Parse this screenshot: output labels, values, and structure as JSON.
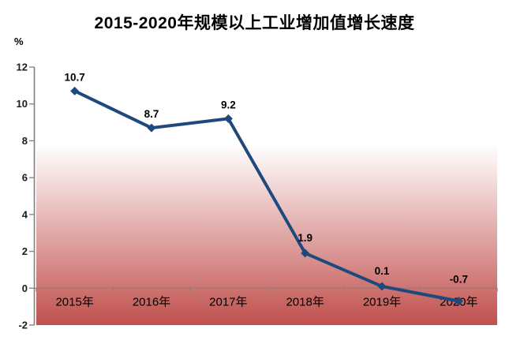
{
  "title": "2015-2020年规模以上工业增加值增长速度",
  "unit_label": "%",
  "chart_data": {
    "type": "line",
    "title": "2015-2020年规模以上工业增加值增长速度",
    "categories": [
      "2015年",
      "2016年",
      "2017年",
      "2018年",
      "2019年",
      "2020年"
    ],
    "values": [
      10.7,
      8.7,
      9.2,
      1.9,
      0.1,
      -0.7
    ],
    "data_labels": [
      "10.7",
      "8.7",
      "9.2",
      "1.9",
      "0.1",
      "-0.7"
    ],
    "series_name": "规模以上工业增加值增长速度",
    "xlabel": "",
    "ylabel": "%",
    "ylim": [
      -2,
      12
    ],
    "ytick_interval": 2,
    "yticks": [
      -2,
      0,
      2,
      4,
      6,
      8,
      10,
      12
    ],
    "grid": "none",
    "legend": "none",
    "marker": "diamond",
    "colors": {
      "line": "#1F497D",
      "marker": "#1F497D",
      "data_label": "#000000",
      "axis_line": "#808080",
      "zero_line": "#808080",
      "axis_tick_label": "#1a1a24",
      "category_label": "#000000",
      "plot_area_top": "#FFFFFF",
      "plot_area_bottom": "#C0504D",
      "title_color": "#000000",
      "background": "#FFFFFF"
    }
  }
}
